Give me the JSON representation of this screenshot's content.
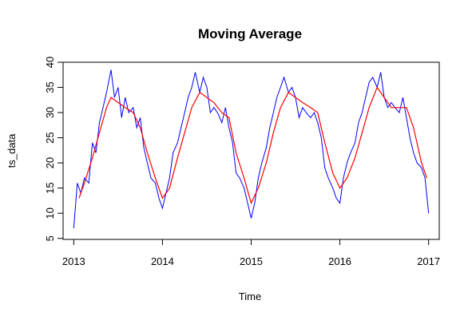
{
  "chart_data": {
    "type": "line",
    "title": "Moving Average",
    "xlabel": "Time",
    "ylabel": "ts_data",
    "xlim": [
      2012.88,
      2017.12
    ],
    "ylim": [
      4.8,
      40.0
    ],
    "x_ticks": [
      2013,
      2014,
      2015,
      2016,
      2017
    ],
    "x_tick_labels": [
      "2013",
      "2014",
      "2015",
      "2016",
      "2017"
    ],
    "y_ticks": [
      5,
      10,
      15,
      20,
      25,
      30,
      35,
      40
    ],
    "y_tick_labels": [
      "5",
      "10",
      "15",
      "20",
      "25",
      "30",
      "35",
      "40"
    ],
    "grid": false,
    "legend": "none",
    "series": [
      {
        "color": "#0000ff",
        "style": "raw",
        "x": [
          2013.0,
          2013.04,
          2013.08,
          2013.12,
          2013.17,
          2013.21,
          2013.25,
          2013.29,
          2013.33,
          2013.37,
          2013.42,
          2013.46,
          2013.5,
          2013.54,
          2013.58,
          2013.62,
          2013.67,
          2013.71,
          2013.75,
          2013.79,
          2013.83,
          2013.87,
          2013.92,
          2013.96,
          2014.0,
          2014.04,
          2014.08,
          2014.12,
          2014.17,
          2014.21,
          2014.25,
          2014.29,
          2014.33,
          2014.37,
          2014.42,
          2014.46,
          2014.5,
          2014.54,
          2014.58,
          2014.62,
          2014.67,
          2014.71,
          2014.75,
          2014.79,
          2014.83,
          2014.87,
          2014.92,
          2014.96,
          2015.0,
          2015.04,
          2015.08,
          2015.12,
          2015.17,
          2015.21,
          2015.25,
          2015.29,
          2015.33,
          2015.37,
          2015.42,
          2015.46,
          2015.5,
          2015.54,
          2015.58,
          2015.62,
          2015.67,
          2015.71,
          2015.75,
          2015.79,
          2015.83,
          2015.87,
          2015.92,
          2015.96,
          2016.0,
          2016.04,
          2016.08,
          2016.12,
          2016.17,
          2016.21,
          2016.25,
          2016.29,
          2016.33,
          2016.37,
          2016.42,
          2016.46,
          2016.5,
          2016.54,
          2016.58,
          2016.62,
          2016.67,
          2016.71,
          2016.75,
          2016.79,
          2016.83,
          2016.87,
          2016.92,
          2016.96,
          2017.0
        ],
        "values": [
          7.0,
          16.0,
          14.0,
          17.0,
          16.0,
          24.0,
          22.0,
          28.0,
          31.0,
          34.0,
          38.5,
          33.0,
          35.0,
          29.0,
          33.0,
          30.0,
          31.0,
          27.0,
          29.0,
          23.0,
          20.0,
          17.0,
          16.0,
          13.0,
          11.0,
          14.0,
          17.0,
          22.0,
          24.0,
          27.0,
          30.0,
          33.0,
          35.0,
          38.0,
          34.0,
          37.0,
          35.0,
          30.0,
          31.0,
          30.0,
          28.0,
          31.0,
          27.0,
          24.0,
          18.0,
          17.0,
          15.0,
          12.0,
          9.0,
          12.0,
          17.0,
          20.0,
          23.0,
          27.0,
          30.0,
          33.0,
          35.0,
          37.0,
          34.0,
          35.0,
          33.0,
          29.0,
          31.0,
          30.0,
          29.0,
          30.0,
          28.0,
          25.0,
          19.0,
          17.0,
          15.0,
          13.0,
          12.0,
          17.0,
          20.0,
          22.0,
          24.0,
          28.0,
          30.0,
          33.0,
          36.0,
          37.0,
          35.0,
          38.0,
          33.0,
          31.0,
          32.0,
          31.0,
          30.0,
          33.0,
          29.0,
          25.0,
          22.0,
          20.0,
          19.0,
          17.0,
          10.0
        ]
      },
      {
        "color": "#ff0000",
        "style": "moving-average",
        "x": [
          2013.06,
          2013.12,
          2013.21,
          2013.29,
          2013.37,
          2013.42,
          2013.5,
          2013.58,
          2013.67,
          2013.75,
          2013.83,
          2013.92,
          2014.0,
          2014.08,
          2014.17,
          2014.25,
          2014.33,
          2014.42,
          2014.5,
          2014.58,
          2014.67,
          2014.75,
          2014.83,
          2014.92,
          2015.0,
          2015.08,
          2015.17,
          2015.25,
          2015.33,
          2015.42,
          2015.5,
          2015.58,
          2015.67,
          2015.75,
          2015.83,
          2015.92,
          2016.0,
          2016.08,
          2016.17,
          2016.25,
          2016.33,
          2016.42,
          2016.5,
          2016.58,
          2016.67,
          2016.75,
          2016.83,
          2016.92,
          2016.98
        ],
        "values": [
          13.0,
          16.0,
          21.0,
          26.0,
          31.0,
          33.0,
          32.0,
          31.0,
          30.0,
          27.0,
          22.0,
          17.0,
          13.0,
          15.0,
          21.0,
          26.0,
          31.0,
          34.0,
          33.0,
          32.0,
          30.0,
          29.0,
          22.0,
          17.0,
          12.0,
          15.0,
          20.0,
          26.0,
          31.0,
          34.0,
          33.0,
          32.0,
          31.0,
          30.0,
          24.0,
          18.0,
          15.0,
          17.0,
          21.0,
          26.0,
          31.0,
          35.0,
          33.0,
          31.0,
          31.0,
          31.0,
          27.0,
          20.0,
          17.0
        ]
      }
    ]
  }
}
